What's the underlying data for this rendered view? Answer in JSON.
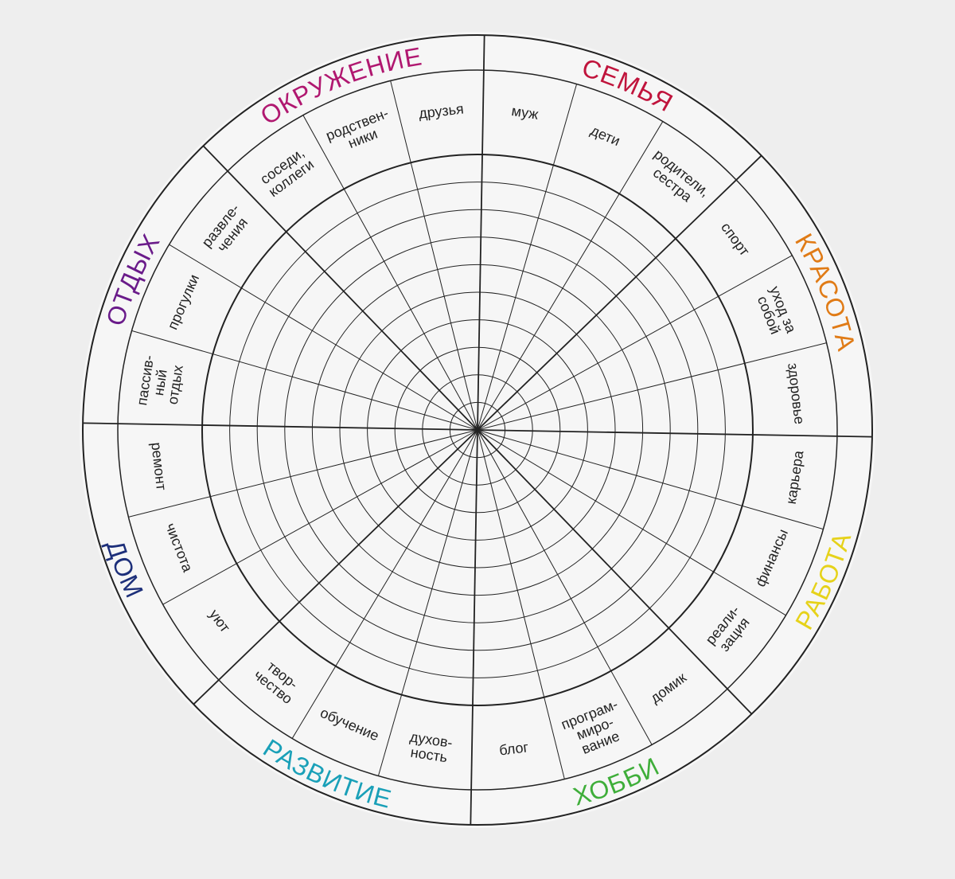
{
  "wheel": {
    "categories": [
      {
        "name": "СЕМЬЯ",
        "color": "#c0143c",
        "subs": [
          [
            "муж"
          ],
          [
            "дети"
          ],
          [
            "родители,",
            "сестра"
          ]
        ]
      },
      {
        "name": "КРАСОТА",
        "color": "#e07b16",
        "subs": [
          [
            "спорт"
          ],
          [
            "уход за",
            "собой"
          ],
          [
            "здоровье"
          ]
        ]
      },
      {
        "name": "РАБОТА",
        "color": "#e6d21a",
        "subs": [
          [
            "карьера"
          ],
          [
            "финансы"
          ],
          [
            "реали-",
            "зация"
          ]
        ]
      },
      {
        "name": "ХОББИ",
        "color": "#3fae3a",
        "subs": [
          [
            "домик"
          ],
          [
            "програм-",
            "миро-",
            "вание"
          ],
          [
            "блог"
          ]
        ]
      },
      {
        "name": "РАЗВИТИЕ",
        "color": "#1aa0b8",
        "subs": [
          [
            "духов-",
            "ность"
          ],
          [
            "обучение"
          ],
          [
            "твор-",
            "чество"
          ]
        ]
      },
      {
        "name": "ДОМ",
        "color": "#1d2f7a",
        "subs": [
          [
            "уют"
          ],
          [
            "чистота"
          ],
          [
            "ремонт"
          ]
        ]
      },
      {
        "name": "ОТДЫХ",
        "color": "#6a1b8a",
        "subs": [
          [
            "пассив-",
            "ный",
            "отдых"
          ],
          [
            "прогулки"
          ],
          [
            "развле-",
            "чения"
          ]
        ]
      },
      {
        "name": "ОКРУЖЕНИЕ",
        "color": "#b01870",
        "subs": [
          [
            "соседи,",
            "коллеги"
          ],
          [
            "родствен-",
            "ники"
          ],
          [
            "друзья"
          ]
        ]
      }
    ],
    "rings": 10,
    "line_color": "#222222",
    "background": "#f6f6f6"
  }
}
